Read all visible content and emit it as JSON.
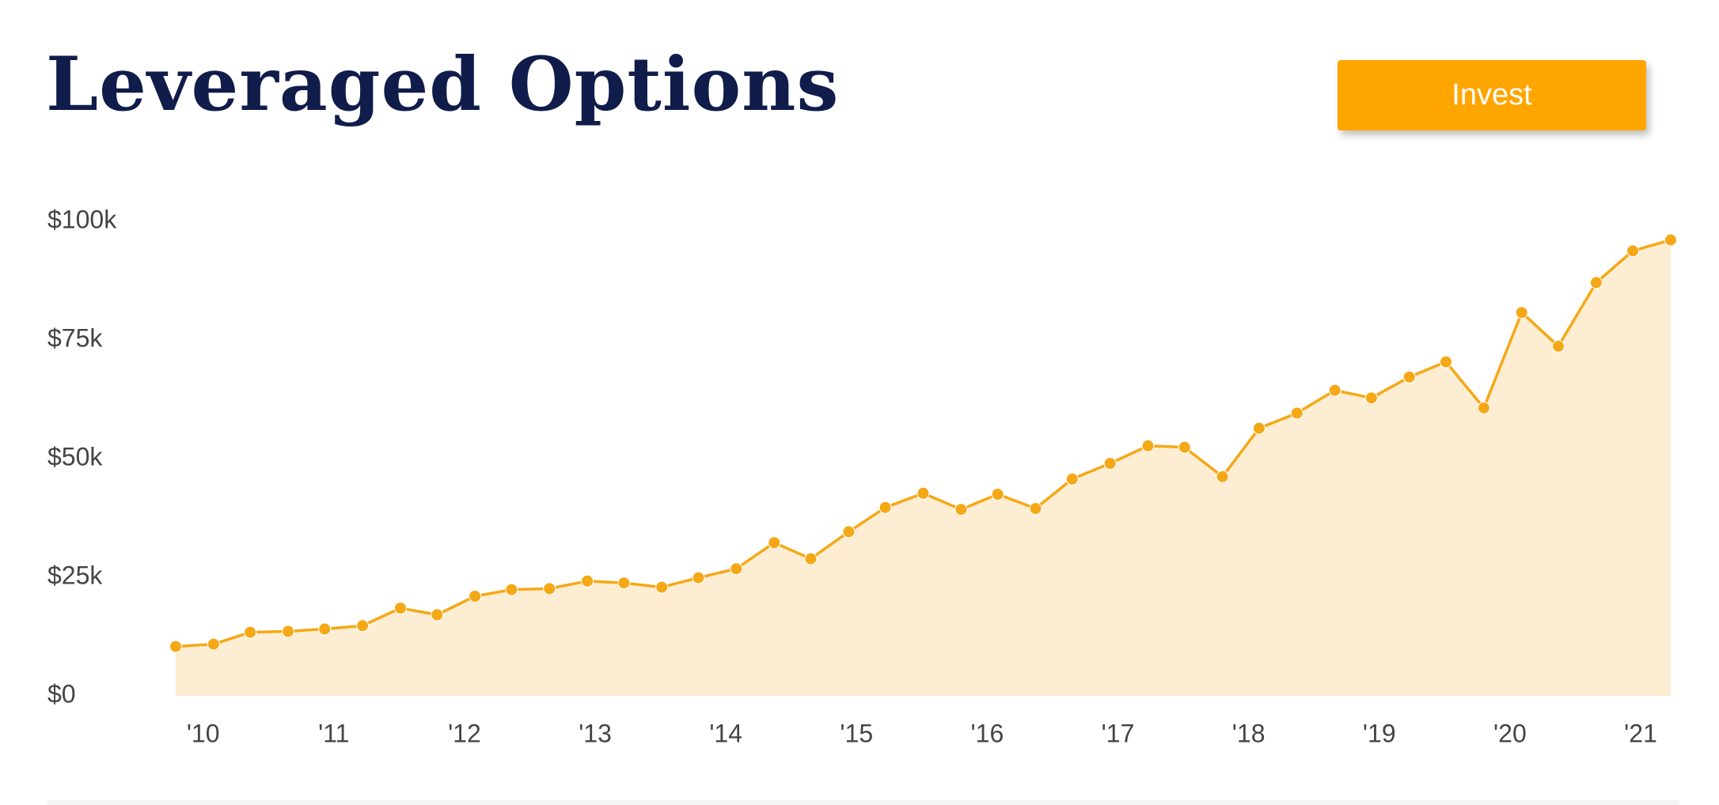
{
  "chart_data": {
    "type": "area-line",
    "title": "Leveraged Options",
    "button": "Invest",
    "color": "#f5a816",
    "fill": "#fdedd2",
    "x": [
      2009.79,
      2010.08,
      2010.36,
      2010.65,
      2010.93,
      2011.22,
      2011.51,
      2011.79,
      2012.08,
      2012.36,
      2012.65,
      2012.94,
      2013.22,
      2013.51,
      2013.79,
      2014.08,
      2014.37,
      2014.65,
      2014.94,
      2015.22,
      2015.51,
      2015.8,
      2016.08,
      2016.37,
      2016.65,
      2016.94,
      2017.23,
      2017.51,
      2017.8,
      2018.08,
      2018.37,
      2018.66,
      2018.94,
      2019.23,
      2019.51,
      2019.8,
      2020.09,
      2020.37,
      2020.66,
      2020.94,
      2021.23
    ],
    "values": [
      10400,
      10900,
      13400,
      13600,
      14100,
      14800,
      18500,
      17100,
      21000,
      22400,
      22600,
      24200,
      23800,
      22900,
      24900,
      26800,
      32300,
      28900,
      34600,
      39700,
      42700,
      39300,
      42500,
      39500,
      45700,
      49000,
      52700,
      52400,
      46200,
      56400,
      59600,
      64400,
      62800,
      67200,
      70400,
      60700,
      80800,
      73700,
      87100,
      93800,
      96100
    ],
    "xlim": [
      2009.79,
      2021.23
    ],
    "xticks": [
      {
        "value": 2010,
        "label": "'10"
      },
      {
        "value": 2011,
        "label": "'11"
      },
      {
        "value": 2012,
        "label": "'12"
      },
      {
        "value": 2013,
        "label": "'13"
      },
      {
        "value": 2014,
        "label": "'14"
      },
      {
        "value": 2015,
        "label": "'15"
      },
      {
        "value": 2016,
        "label": "'16"
      },
      {
        "value": 2017,
        "label": "'17"
      },
      {
        "value": 2018,
        "label": "'18"
      },
      {
        "value": 2019,
        "label": "'19"
      },
      {
        "value": 2020,
        "label": "'20"
      },
      {
        "value": 2021,
        "label": "'21"
      }
    ],
    "ylim": [
      0,
      100000
    ],
    "yticks": [
      {
        "value": 0,
        "label": "$0"
      },
      {
        "value": 25000,
        "label": "$25k"
      },
      {
        "value": 50000,
        "label": "$50k"
      },
      {
        "value": 75000,
        "label": "$75k"
      },
      {
        "value": 100000,
        "label": "$100k"
      }
    ],
    "grid": false
  }
}
